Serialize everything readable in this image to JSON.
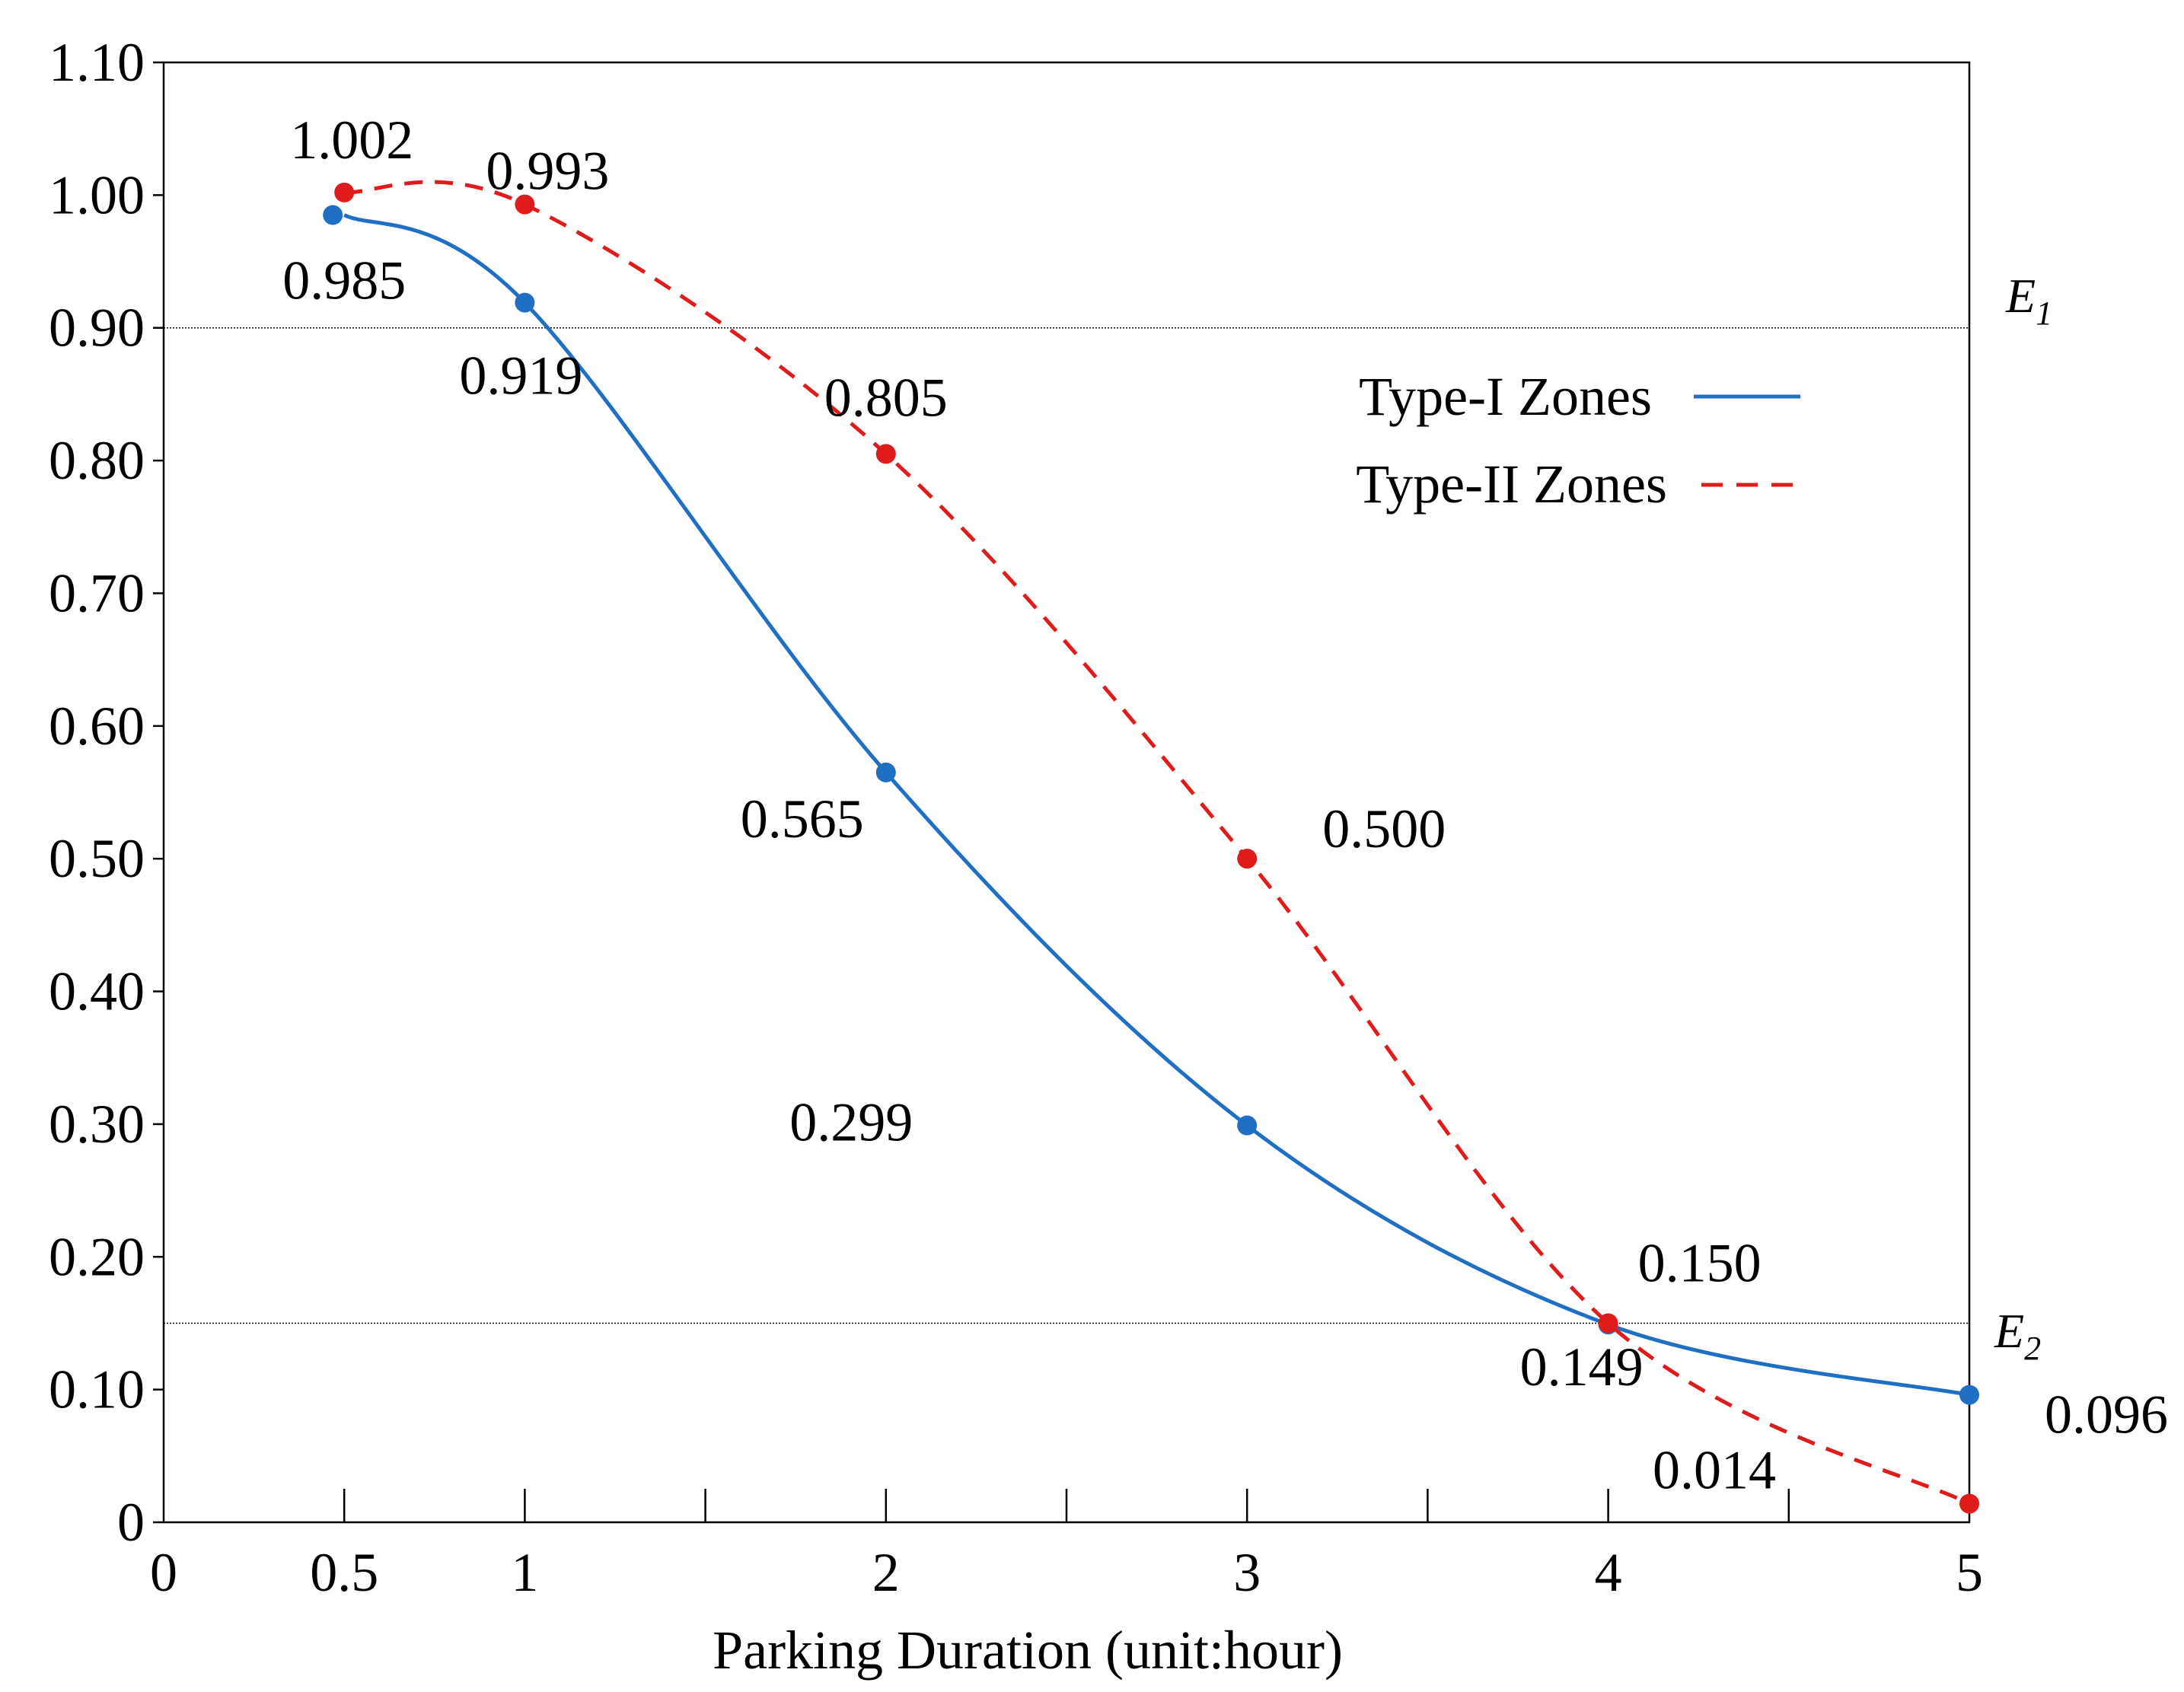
{
  "chart_data": {
    "type": "line",
    "xlabel": "Parking Duration (unit:hour)",
    "ylabel": "",
    "xlim": [
      0,
      5
    ],
    "ylim": [
      0,
      1.1
    ],
    "x_tick_labels": [
      {
        "value": 0,
        "label": "0"
      },
      {
        "value": 0.5,
        "label": "0.5"
      },
      {
        "value": 1,
        "label": "1"
      },
      {
        "value": 2,
        "label": "2"
      },
      {
        "value": 3,
        "label": "3"
      },
      {
        "value": 4,
        "label": "4"
      },
      {
        "value": 5,
        "label": "5"
      }
    ],
    "x_tick_marks": [
      0.5,
      1,
      1.5,
      2,
      2.5,
      3,
      3.5,
      4,
      4.5
    ],
    "y_tick_labels": [
      {
        "value": 0,
        "label": "0"
      },
      {
        "value": 0.1,
        "label": "0.10"
      },
      {
        "value": 0.2,
        "label": "0.20"
      },
      {
        "value": 0.3,
        "label": "0.30"
      },
      {
        "value": 0.4,
        "label": "0.40"
      },
      {
        "value": 0.5,
        "label": "0.50"
      },
      {
        "value": 0.6,
        "label": "0.60"
      },
      {
        "value": 0.7,
        "label": "0.70"
      },
      {
        "value": 0.8,
        "label": "0.80"
      },
      {
        "value": 0.9,
        "label": "0.90"
      },
      {
        "value": 1.0,
        "label": "1.00"
      },
      {
        "value": 1.1,
        "label": "1.10"
      }
    ],
    "series": [
      {
        "name": "Type-I Zones",
        "color": "#1f6fc4",
        "dash": "solid",
        "points": [
          {
            "x": 0.5,
            "y": 0.985,
            "label": "0.985"
          },
          {
            "x": 1,
            "y": 0.919,
            "label": "0.919"
          },
          {
            "x": 2,
            "y": 0.565,
            "label": "0.565"
          },
          {
            "x": 3,
            "y": 0.299,
            "label": "0.299"
          },
          {
            "x": 4,
            "y": 0.149,
            "label": "0.149"
          },
          {
            "x": 5,
            "y": 0.096,
            "label": "0.096"
          }
        ]
      },
      {
        "name": "Type-II Zones",
        "color": "#e01b1b",
        "dash": "dashed",
        "points": [
          {
            "x": 0.5,
            "y": 1.002,
            "label": "1.002"
          },
          {
            "x": 1,
            "y": 0.993,
            "label": "0.993"
          },
          {
            "x": 2,
            "y": 0.805,
            "label": "0.805"
          },
          {
            "x": 3,
            "y": 0.5,
            "label": "0.500"
          },
          {
            "x": 4,
            "y": 0.15,
            "label": "0.150"
          },
          {
            "x": 5,
            "y": 0.014,
            "label": "0.014"
          }
        ]
      }
    ],
    "reference_lines": [
      {
        "name": "E1",
        "letter": "E",
        "subscript": "1",
        "y": 0.9
      },
      {
        "name": "E2",
        "letter": "E",
        "subscript": "2",
        "y": 0.15
      }
    ],
    "legend_position": "upper-right"
  }
}
